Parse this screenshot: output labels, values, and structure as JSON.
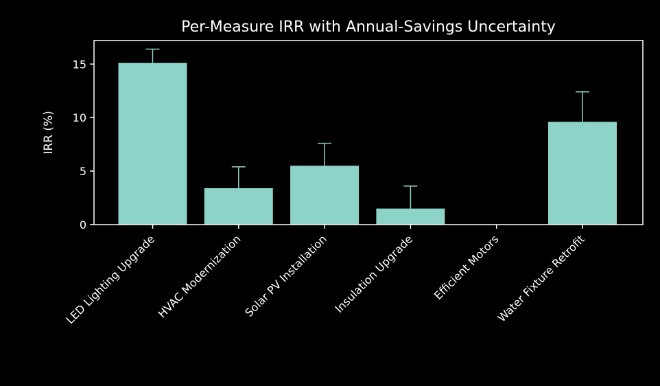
{
  "chart_data": {
    "type": "bar",
    "title": "Per-Measure IRR with Annual-Savings Uncertainty",
    "xlabel": "",
    "ylabel": "IRR (%)",
    "categories": [
      "LED Lighting Upgrade",
      "HVAC Modernization",
      "Solar PV Installation",
      "Insulation Upgrade",
      "Efficient Motors",
      "Water Fixture Retrofit"
    ],
    "values": [
      15.1,
      3.4,
      5.5,
      1.5,
      0,
      9.6
    ],
    "error_plus": [
      1.3,
      2.0,
      2.1,
      2.1,
      0,
      2.8
    ],
    "ylim": [
      0,
      17.2
    ],
    "yticks": [
      0,
      5,
      10,
      15
    ],
    "grid": false,
    "legend": "none",
    "colors": {
      "bar": "#8dd3c7",
      "errorbar": "#8dd3c7",
      "axes": "#ffffff",
      "text": "#ffffff",
      "background": "#000000"
    }
  }
}
